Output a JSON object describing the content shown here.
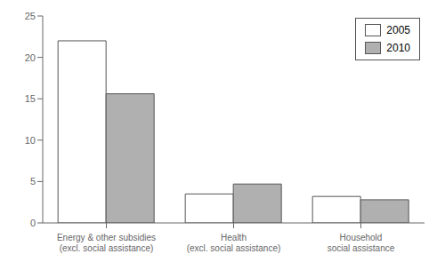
{
  "chart_data": {
    "type": "bar",
    "categories": [
      "Energy & other subsidies\n(excl. social assistance)",
      "Health\n(excl. social assistance)",
      "Household\nsocial assistance"
    ],
    "series": [
      {
        "name": "2005",
        "color": "#ffffff",
        "values": [
          22.0,
          3.5,
          3.2
        ]
      },
      {
        "name": "2010",
        "color": "#b0b0b0",
        "values": [
          15.6,
          4.7,
          2.8
        ]
      }
    ],
    "ylim": [
      0,
      25
    ],
    "yticks": [
      0,
      5,
      10,
      15,
      20,
      25
    ],
    "grid": false,
    "legend": "upper right"
  }
}
